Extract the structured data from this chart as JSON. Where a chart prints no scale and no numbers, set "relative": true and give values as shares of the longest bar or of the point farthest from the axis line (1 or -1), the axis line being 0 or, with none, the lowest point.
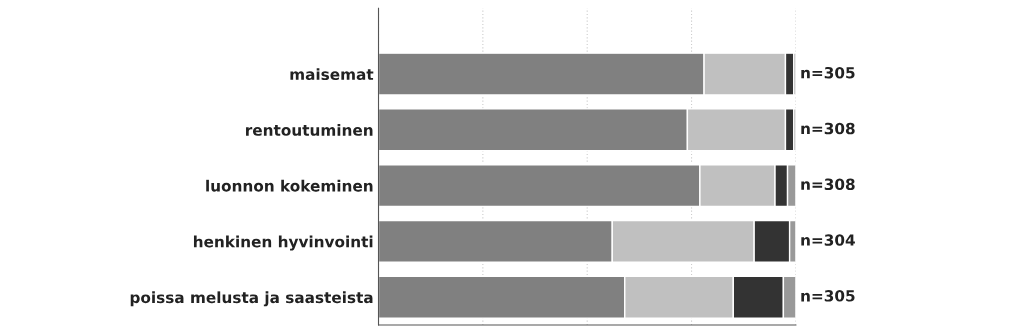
{
  "chart_data": {
    "type": "bar",
    "orientation": "horizontal",
    "stacked": true,
    "relative": true,
    "grid": "x",
    "categories": [
      "maisemat",
      "rentoutuminen",
      "luonnon kokeminen",
      "henkinen hyvinvointi",
      "poissa melusta ja saasteista"
    ],
    "series": [
      {
        "color": "#808080",
        "values": [
          0.78,
          0.74,
          0.77,
          0.56,
          0.59
        ]
      },
      {
        "color": "#c0c0c0",
        "values": [
          0.195,
          0.235,
          0.18,
          0.34,
          0.26
        ]
      },
      {
        "color": "#333333",
        "values": [
          0.02,
          0.02,
          0.03,
          0.085,
          0.12
        ]
      },
      {
        "color": "#999999",
        "values": [
          0.005,
          0.005,
          0.02,
          0.015,
          0.03
        ]
      }
    ],
    "annotations": [
      "n=305",
      "n=308",
      "n=308",
      "n=304",
      "n=305"
    ]
  }
}
